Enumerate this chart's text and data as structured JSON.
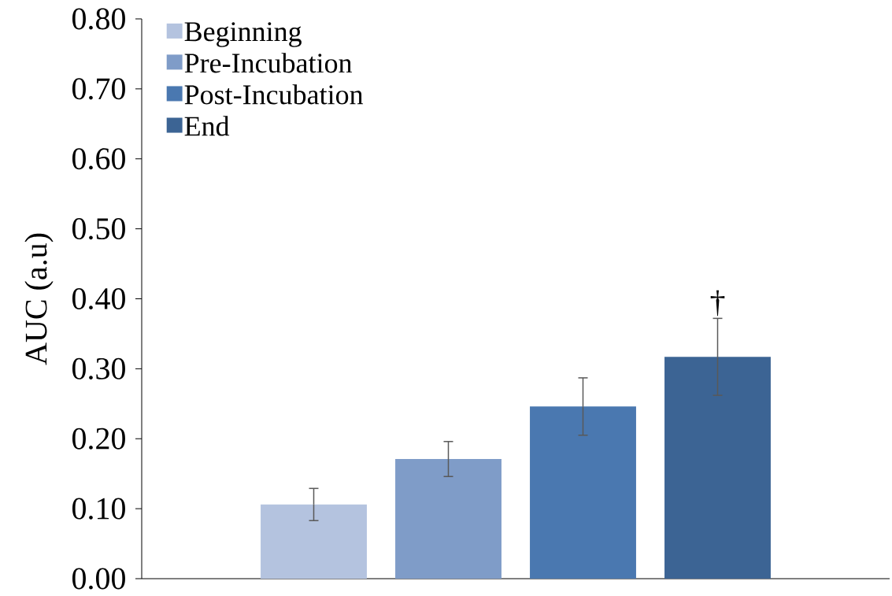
{
  "chart_data": {
    "type": "bar",
    "ylabel": "AUC (a.u)",
    "categories": [
      null
    ],
    "series": [
      {
        "name": "Beginning",
        "color": "#b4c3df",
        "values": [
          0.106
        ],
        "errors": [
          0.023
        ]
      },
      {
        "name": "Pre-Incubation",
        "color": "#7f9cc8",
        "values": [
          0.171
        ],
        "errors": [
          0.025
        ]
      },
      {
        "name": "Post-Incubation",
        "color": "#4a78b0",
        "values": [
          0.246
        ],
        "errors": [
          0.041
        ]
      },
      {
        "name": "End",
        "color": "#3c6494",
        "values": [
          0.317
        ],
        "errors": [
          0.055
        ]
      }
    ],
    "ylim": [
      0,
      0.8
    ],
    "yticks": [
      {
        "value": 0,
        "label": "0.00"
      },
      {
        "value": 0.1,
        "label": "0.10"
      },
      {
        "value": 0.2,
        "label": "0.20"
      },
      {
        "value": 0.3,
        "label": "0.30"
      },
      {
        "value": 0.4,
        "label": "0.40"
      },
      {
        "value": 0.5,
        "label": "0.50"
      },
      {
        "value": 0.6,
        "label": "0.60"
      },
      {
        "value": 0.7,
        "label": "0.70"
      },
      {
        "value": 0.8,
        "label": "0.80"
      }
    ],
    "annotations": [
      "†"
    ],
    "legend": "top left",
    "grid": false
  }
}
